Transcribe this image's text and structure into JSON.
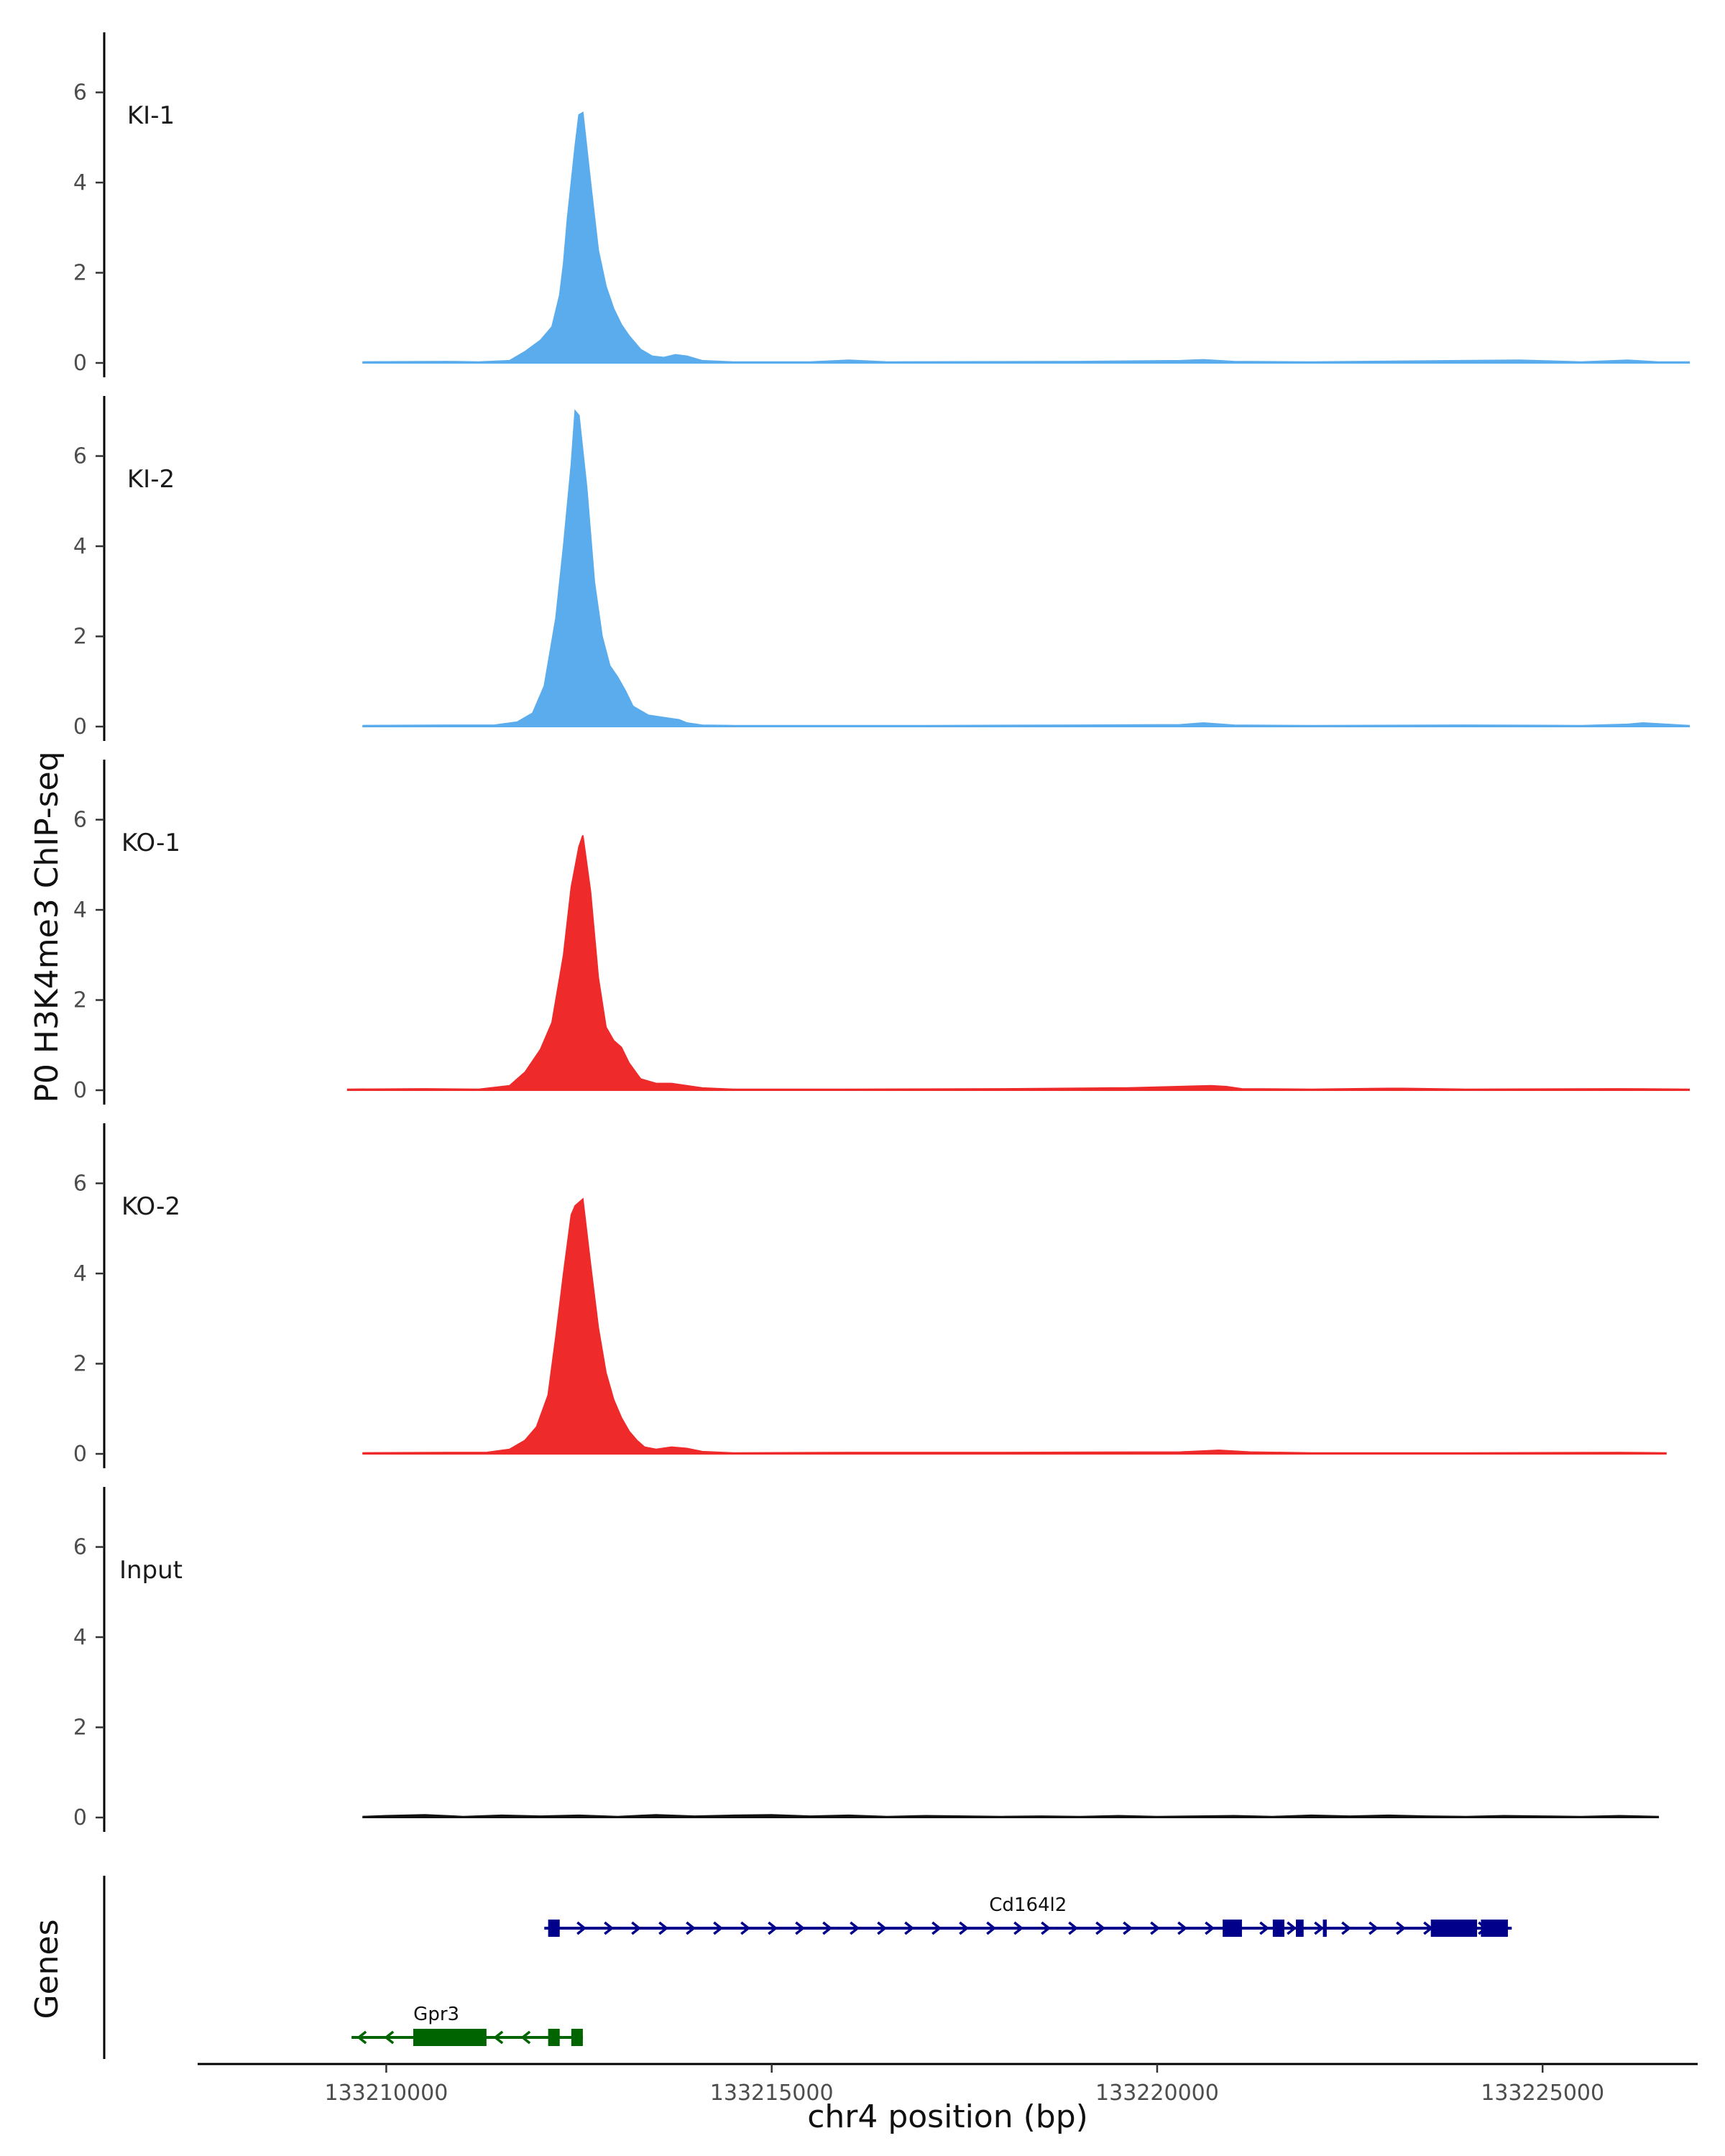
{
  "chart_data": {
    "type": "area",
    "title": "",
    "xlabel": "chr4 position (bp)",
    "ylabel": "P0 H3K4me3 ChIP-seq",
    "xlim": [
      133207600,
      133226900
    ],
    "ylim": [
      0,
      7.3
    ],
    "x_ticks": [
      133210000,
      133215000,
      133220000,
      133225000
    ],
    "x_tick_labels": [
      "133210000",
      "133215000",
      "133220000",
      "133225000"
    ],
    "y_ticks": [
      0,
      2,
      4,
      6
    ],
    "y_tick_labels": [
      "0",
      "2",
      "4",
      "6"
    ],
    "grid": false,
    "series": [
      {
        "name": "KI-1",
        "color": "#5aacec",
        "x": [
          133209700,
          133210800,
          133211200,
          133211600,
          133211800,
          133212000,
          133212150,
          133212250,
          133212300,
          133212350,
          133212450,
          133212500,
          133212550,
          133212650,
          133212750,
          133212850,
          133212950,
          133213050,
          133213150,
          133213300,
          133213450,
          133213600,
          133213750,
          133213900,
          133214100,
          133214500,
          133215500,
          133216000,
          133216500,
          133219000,
          133220300,
          133220600,
          133221000,
          133222000,
          133224700,
          133225500,
          133226100,
          133226500,
          133226900
        ],
        "y": [
          0.02,
          0.03,
          0.02,
          0.05,
          0.25,
          0.5,
          0.8,
          1.5,
          2.2,
          3.2,
          4.8,
          5.5,
          5.55,
          4.0,
          2.5,
          1.7,
          1.2,
          0.85,
          0.6,
          0.3,
          0.15,
          0.12,
          0.18,
          0.15,
          0.05,
          0.02,
          0.02,
          0.06,
          0.02,
          0.03,
          0.05,
          0.07,
          0.03,
          0.02,
          0.06,
          0.02,
          0.06,
          0.02,
          0.02
        ]
      },
      {
        "name": "KI-2",
        "color": "#5aacec",
        "x": [
          133209700,
          133210800,
          133211400,
          133211700,
          133211900,
          133212050,
          133212200,
          133212300,
          133212400,
          133212450,
          133212500,
          133212600,
          133212700,
          133212800,
          133212900,
          133213000,
          133213100,
          133213200,
          133213400,
          133213600,
          133213800,
          133213900,
          133214100,
          133214500,
          133215500,
          133217000,
          133219000,
          133220300,
          133220600,
          133221000,
          133222000,
          133224000,
          133225500,
          133226100,
          133226300,
          133226900
        ],
        "y": [
          0.02,
          0.03,
          0.03,
          0.1,
          0.3,
          0.9,
          2.4,
          4.0,
          5.8,
          7.0,
          6.9,
          5.3,
          3.2,
          2.0,
          1.35,
          1.1,
          0.8,
          0.45,
          0.25,
          0.2,
          0.15,
          0.08,
          0.03,
          0.02,
          0.02,
          0.02,
          0.03,
          0.04,
          0.08,
          0.03,
          0.02,
          0.03,
          0.02,
          0.05,
          0.08,
          0.02
        ]
      },
      {
        "name": "KO-1",
        "color": "#ee2a2a",
        "x": [
          133209500,
          133210500,
          133211200,
          133211600,
          133211800,
          133212000,
          133212150,
          133212300,
          133212400,
          133212500,
          133212550,
          133212650,
          133212750,
          133212850,
          133212950,
          133213050,
          133213150,
          133213300,
          133213500,
          133213700,
          133213900,
          133214100,
          133214500,
          133216000,
          133218000,
          133219400,
          133219600,
          133220700,
          133220900,
          133221100,
          133222000,
          133223000,
          133223200,
          133224000,
          133226000,
          133226900
        ],
        "y": [
          0.02,
          0.03,
          0.02,
          0.1,
          0.4,
          0.9,
          1.5,
          3.0,
          4.5,
          5.4,
          5.65,
          4.4,
          2.5,
          1.4,
          1.1,
          0.95,
          0.6,
          0.25,
          0.15,
          0.15,
          0.1,
          0.05,
          0.02,
          0.02,
          0.03,
          0.05,
          0.05,
          0.1,
          0.08,
          0.03,
          0.02,
          0.04,
          0.04,
          0.02,
          0.03,
          0.02
        ]
      },
      {
        "name": "KO-2",
        "color": "#ee2a2a",
        "x": [
          133209700,
          133210800,
          133211300,
          133211600,
          133211800,
          133211950,
          133212100,
          133212200,
          133212300,
          133212400,
          133212450,
          133212550,
          133212650,
          133212750,
          133212850,
          133212950,
          133213050,
          133213150,
          133213250,
          133213350,
          133213500,
          133213700,
          133213900,
          133214100,
          133214500,
          133216000,
          133218000,
          133220300,
          133220800,
          133221200,
          133222000,
          133224000,
          133226000,
          133226600
        ],
        "y": [
          0.02,
          0.03,
          0.03,
          0.1,
          0.3,
          0.6,
          1.3,
          2.6,
          4.0,
          5.3,
          5.5,
          5.65,
          4.2,
          2.8,
          1.8,
          1.2,
          0.8,
          0.5,
          0.3,
          0.15,
          0.1,
          0.15,
          0.12,
          0.05,
          0.02,
          0.03,
          0.03,
          0.04,
          0.08,
          0.04,
          0.02,
          0.02,
          0.03,
          0.02
        ]
      },
      {
        "name": "Input",
        "color": "#111111",
        "x": [
          133209700,
          133210000,
          133210500,
          133211000,
          133211500,
          133212000,
          133212500,
          133213000,
          133213500,
          133214000,
          133214500,
          133215000,
          133215500,
          133216000,
          133216500,
          133217000,
          133217500,
          133218000,
          133218500,
          133219000,
          133219500,
          133220000,
          133220500,
          133221000,
          133221500,
          133222000,
          133222500,
          133223000,
          133223500,
          133224000,
          133224500,
          133225000,
          133225500,
          133226000,
          133226500
        ],
        "y": [
          0.02,
          0.04,
          0.06,
          0.02,
          0.05,
          0.03,
          0.05,
          0.02,
          0.06,
          0.03,
          0.05,
          0.06,
          0.03,
          0.05,
          0.02,
          0.04,
          0.03,
          0.02,
          0.03,
          0.02,
          0.04,
          0.02,
          0.03,
          0.04,
          0.02,
          0.05,
          0.03,
          0.05,
          0.03,
          0.02,
          0.04,
          0.03,
          0.02,
          0.04,
          0.02
        ]
      }
    ],
    "genes_track": {
      "label": "Genes",
      "genes": [
        {
          "name": "Cd164l2",
          "strand": "+",
          "color": "#00008b",
          "start": 133212050,
          "end": 133224600,
          "exons": [
            [
              133212100,
              133212250
            ],
            [
              133220850,
              133221100
            ],
            [
              133221500,
              133221650
            ],
            [
              133221800,
              133221900
            ],
            [
              133222150,
              133222200
            ],
            [
              133223550,
              133224150
            ],
            [
              133224200,
              133224550
            ]
          ]
        },
        {
          "name": "Gpr3",
          "strand": "-",
          "color": "#006400",
          "start": 133209550,
          "end": 133212550,
          "exons": [
            [
              133210350,
              133211300
            ],
            [
              133212100,
              133212250
            ],
            [
              133212400,
              133212550
            ]
          ]
        }
      ]
    }
  }
}
